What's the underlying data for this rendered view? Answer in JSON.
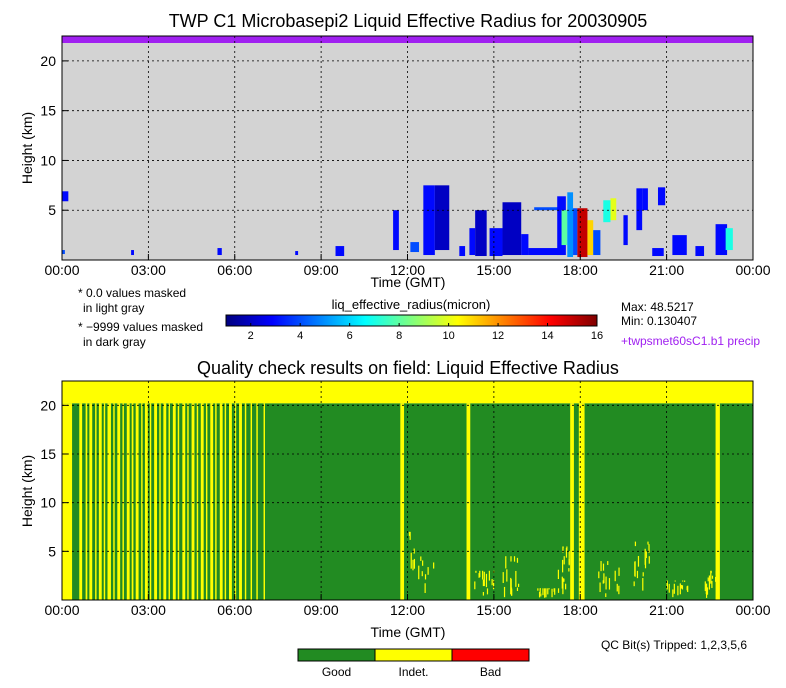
{
  "chart_data": [
    {
      "type": "heatmap",
      "title": "TWP C1 Microbasepi2 Liquid Effective Radius for 20030905",
      "xlabel": "Time (GMT)",
      "ylabel": "Height (km)",
      "x_ticks": [
        "00:00",
        "03:00",
        "06:00",
        "09:00",
        "12:00",
        "15:00",
        "18:00",
        "21:00",
        "00:00"
      ],
      "y_ticks": [
        "5",
        "10",
        "15",
        "20"
      ],
      "xlim_hours": [
        0,
        24
      ],
      "ylim_km": [
        0,
        22.5
      ],
      "grid": true,
      "background_color": "#d3d3d3",
      "top_flag_color": "#a020f0",
      "colorbar": {
        "label": "liq_effective_radius(micron)",
        "range": [
          1,
          16
        ],
        "ticks": [
          "2",
          "4",
          "6",
          "8",
          "10",
          "12",
          "14",
          "16"
        ],
        "colormap": [
          "#00007f",
          "#0000ff",
          "#007fff",
          "#00ffff",
          "#7fff7f",
          "#ffff00",
          "#ff7f00",
          "#ff0000",
          "#7f0000"
        ]
      },
      "max_label": "Max: 48.5217",
      "min_label": "Min: 0.130407",
      "mask_notes": [
        "* 0.0 values masked",
        "in light gray",
        "* −9999 values masked",
        "in dark gray"
      ],
      "precip_note": "+twpsmet60sC1.b1 precip",
      "cloud_features": [
        {
          "t0": 0.0,
          "t1": 0.22,
          "h0": 5.9,
          "h1": 6.9,
          "value": 3
        },
        {
          "t0": 0.0,
          "t1": 0.1,
          "h0": 0.6,
          "h1": 1.0,
          "value": 4
        },
        {
          "t0": 2.4,
          "t1": 2.5,
          "h0": 0.5,
          "h1": 1.0,
          "value": 3
        },
        {
          "t0": 5.4,
          "t1": 5.55,
          "h0": 0.5,
          "h1": 1.2,
          "value": 3
        },
        {
          "t0": 8.1,
          "t1": 8.2,
          "h0": 0.5,
          "h1": 0.9,
          "value": 3
        },
        {
          "t0": 9.5,
          "t1": 9.8,
          "h0": 0.4,
          "h1": 1.4,
          "value": 3
        },
        {
          "t0": 11.5,
          "t1": 11.7,
          "h0": 1.0,
          "h1": 5.0,
          "value": 3
        },
        {
          "t0": 12.1,
          "t1": 12.4,
          "h0": 0.8,
          "h1": 1.8,
          "value": 4
        },
        {
          "t0": 12.55,
          "t1": 12.95,
          "h0": 0.5,
          "h1": 7.5,
          "value": 3
        },
        {
          "t0": 12.95,
          "t1": 13.45,
          "h0": 1.0,
          "h1": 7.5,
          "value": 2
        },
        {
          "t0": 13.8,
          "t1": 14.0,
          "h0": 0.4,
          "h1": 1.4,
          "value": 3
        },
        {
          "t0": 14.15,
          "t1": 14.35,
          "h0": 0.5,
          "h1": 3.2,
          "value": 3
        },
        {
          "t0": 14.35,
          "t1": 14.75,
          "h0": 0.4,
          "h1": 5.0,
          "value": 2
        },
        {
          "t0": 14.85,
          "t1": 15.3,
          "h0": 0.4,
          "h1": 3.2,
          "value": 3
        },
        {
          "t0": 15.3,
          "t1": 15.95,
          "h0": 0.5,
          "h1": 5.8,
          "value": 2
        },
        {
          "t0": 15.95,
          "t1": 16.2,
          "h0": 0.5,
          "h1": 2.6,
          "value": 3
        },
        {
          "t0": 16.2,
          "t1": 17.4,
          "h0": 0.5,
          "h1": 1.2,
          "value": 3
        },
        {
          "t0": 16.4,
          "t1": 17.25,
          "h0": 5.0,
          "h1": 5.3,
          "value": 4
        },
        {
          "t0": 17.2,
          "t1": 17.5,
          "h0": 0.5,
          "h1": 6.4,
          "value": 3
        },
        {
          "t0": 17.35,
          "t1": 17.55,
          "h0": 1.5,
          "h1": 5.0,
          "value": 8
        },
        {
          "t0": 17.55,
          "t1": 17.75,
          "h0": 0.3,
          "h1": 6.8,
          "value": 5
        },
        {
          "t0": 17.75,
          "t1": 17.9,
          "h0": 0.5,
          "h1": 5.2,
          "value": 4
        },
        {
          "t0": 17.9,
          "t1": 18.25,
          "h0": 0.3,
          "h1": 5.2,
          "value": 15
        },
        {
          "t0": 18.25,
          "t1": 18.45,
          "h0": 0.5,
          "h1": 4.0,
          "value": 11
        },
        {
          "t0": 18.45,
          "t1": 18.7,
          "h0": 0.5,
          "h1": 3.0,
          "value": 4
        },
        {
          "t0": 18.8,
          "t1": 19.05,
          "h0": 3.8,
          "h1": 6.0,
          "value": 7
        },
        {
          "t0": 19.05,
          "t1": 19.25,
          "h0": 4.0,
          "h1": 6.2,
          "value": 10
        },
        {
          "t0": 19.5,
          "t1": 19.65,
          "h0": 1.5,
          "h1": 4.5,
          "value": 3
        },
        {
          "t0": 19.95,
          "t1": 20.15,
          "h0": 3.0,
          "h1": 7.2,
          "value": 3
        },
        {
          "t0": 20.15,
          "t1": 20.35,
          "h0": 5.0,
          "h1": 7.2,
          "value": 3
        },
        {
          "t0": 20.7,
          "t1": 20.95,
          "h0": 5.5,
          "h1": 7.3,
          "value": 3
        },
        {
          "t0": 20.5,
          "t1": 20.9,
          "h0": 0.4,
          "h1": 1.2,
          "value": 3
        },
        {
          "t0": 21.2,
          "t1": 21.7,
          "h0": 0.5,
          "h1": 2.5,
          "value": 3
        },
        {
          "t0": 22.0,
          "t1": 22.3,
          "h0": 0.4,
          "h1": 1.4,
          "value": 3
        },
        {
          "t0": 22.7,
          "t1": 23.1,
          "h0": 0.5,
          "h1": 3.6,
          "value": 3
        },
        {
          "t0": 23.05,
          "t1": 23.3,
          "h0": 1.0,
          "h1": 3.2,
          "value": 7
        }
      ]
    },
    {
      "type": "heatmap",
      "title": "Quality check results on field: Liquid Effective Radius",
      "xlabel": "Time (GMT)",
      "ylabel": "Height (km)",
      "x_ticks": [
        "00:00",
        "03:00",
        "06:00",
        "09:00",
        "12:00",
        "15:00",
        "18:00",
        "21:00",
        "00:00"
      ],
      "y_ticks": [
        "5",
        "10",
        "15",
        "20"
      ],
      "xlim_hours": [
        0,
        24
      ],
      "ylim_km": [
        0,
        22.5
      ],
      "grid": true,
      "indeterminate_above_km": 20.2,
      "qc_categories": [
        {
          "label": "Good",
          "color": "#228b22"
        },
        {
          "label": "Indet.",
          "color": "#ffff00"
        },
        {
          "label": "Bad",
          "color": "#ff0000"
        }
      ],
      "qc_bits_label": "QC Bit(s) Tripped: 1,2,3,5,6",
      "indeterminate_columns_hours": [
        [
          0,
          0.35
        ],
        [
          0.6,
          0.7
        ],
        [
          0.82,
          0.88
        ],
        [
          0.95,
          1.05
        ],
        [
          1.15,
          1.2
        ],
        [
          1.28,
          1.38
        ],
        [
          1.45,
          1.5
        ],
        [
          1.58,
          1.7
        ],
        [
          1.78,
          1.83
        ],
        [
          1.92,
          2.02
        ],
        [
          2.1,
          2.15
        ],
        [
          2.25,
          2.35
        ],
        [
          2.42,
          2.48
        ],
        [
          2.56,
          2.66
        ],
        [
          2.75,
          2.8
        ],
        [
          2.88,
          2.98
        ],
        [
          3.05,
          3.1
        ],
        [
          3.2,
          3.3
        ],
        [
          3.38,
          3.43
        ],
        [
          3.52,
          3.62
        ],
        [
          3.7,
          3.75
        ],
        [
          3.85,
          3.95
        ],
        [
          4.02,
          4.07
        ],
        [
          4.18,
          4.28
        ],
        [
          4.35,
          4.4
        ],
        [
          4.5,
          4.6
        ],
        [
          4.68,
          4.73
        ],
        [
          4.82,
          4.92
        ],
        [
          5.0,
          5.05
        ],
        [
          5.15,
          5.25
        ],
        [
          5.32,
          5.37
        ],
        [
          5.48,
          5.58
        ],
        [
          5.65,
          5.7
        ],
        [
          5.8,
          5.9
        ],
        [
          6.0,
          6.05
        ],
        [
          6.15,
          6.25
        ],
        [
          6.35,
          6.4
        ],
        [
          6.55,
          6.6
        ],
        [
          6.75,
          6.8
        ],
        [
          7.0,
          7.05
        ],
        [
          11.75,
          11.88
        ],
        [
          14.05,
          14.18
        ],
        [
          17.65,
          17.78
        ],
        [
          17.95,
          18.15
        ],
        [
          22.7,
          22.85
        ]
      ],
      "indeterminate_speckle": [
        {
          "t0": 12.0,
          "t1": 12.9,
          "h0": 0.2,
          "h1": 7.0
        },
        {
          "t0": 14.3,
          "t1": 15.0,
          "h0": 0.2,
          "h1": 3.0
        },
        {
          "t0": 15.3,
          "t1": 15.9,
          "h0": 0.2,
          "h1": 4.5
        },
        {
          "t0": 16.5,
          "t1": 17.3,
          "h0": 0.2,
          "h1": 1.2
        },
        {
          "t0": 17.2,
          "t1": 17.6,
          "h0": 0.2,
          "h1": 5.5
        },
        {
          "t0": 18.6,
          "t1": 19.4,
          "h0": 0.2,
          "h1": 4.0
        },
        {
          "t0": 19.8,
          "t1": 20.4,
          "h0": 0.2,
          "h1": 6.0
        },
        {
          "t0": 21.0,
          "t1": 21.8,
          "h0": 0.2,
          "h1": 2.0
        },
        {
          "t0": 22.3,
          "t1": 22.7,
          "h0": 0.2,
          "h1": 3.0
        }
      ]
    }
  ]
}
